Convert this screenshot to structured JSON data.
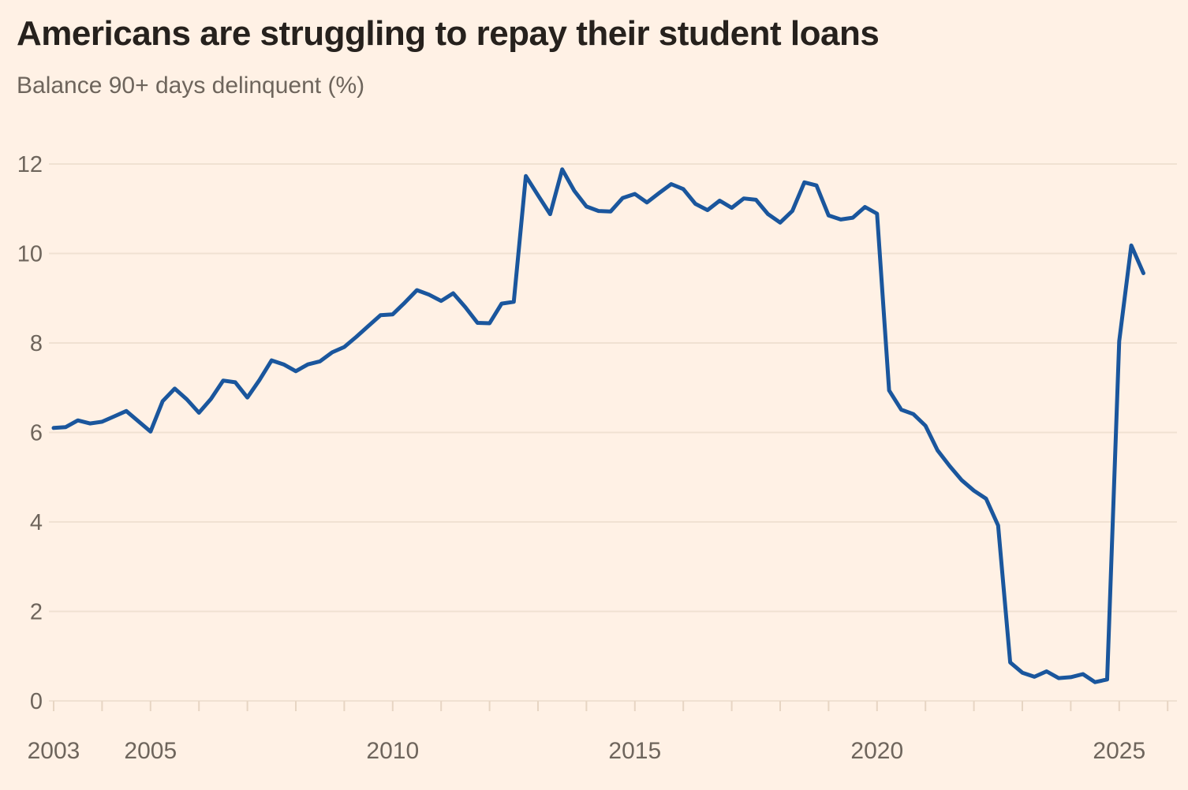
{
  "title": "Americans are struggling to repay their student loans",
  "subtitle": "Balance 90+ days delinquent (%)",
  "chart_data": {
    "type": "line",
    "title": "Americans are struggling to repay their student loans",
    "subtitle": "Balance 90+ days delinquent (%)",
    "ylabel": "Balance 90+ days delinquent (%)",
    "xlabel": "",
    "legend_position": "none",
    "grid": "horizontal",
    "ylim": [
      0,
      12.6
    ],
    "xlim": [
      2003,
      2026
    ],
    "y_ticks": [
      0,
      2,
      4,
      6,
      8,
      10,
      12
    ],
    "x_minor_tick_every_years": 1,
    "x_tick_labels": [
      {
        "year": 2003,
        "label": "2003"
      },
      {
        "year": 2005,
        "label": "2005"
      },
      {
        "year": 2010,
        "label": "2010"
      },
      {
        "year": 2015,
        "label": "2015"
      },
      {
        "year": 2020,
        "label": "2020"
      },
      {
        "year": 2025,
        "label": "2025"
      }
    ],
    "series": [
      {
        "name": "Balance 90+ days delinquent (%)",
        "start_year": 2003.0,
        "interval_years": 0.25,
        "values": [
          6.1,
          6.12,
          6.27,
          6.2,
          6.24,
          6.36,
          6.48,
          6.25,
          6.02,
          6.7,
          6.98,
          6.74,
          6.44,
          6.75,
          7.16,
          7.12,
          6.78,
          7.17,
          7.61,
          7.52,
          7.37,
          7.52,
          7.59,
          7.79,
          7.91,
          8.14,
          8.38,
          8.62,
          8.64,
          8.9,
          9.18,
          9.08,
          8.94,
          9.11,
          8.8,
          8.45,
          8.44,
          8.88,
          8.92,
          11.73,
          11.3,
          10.88,
          11.88,
          11.4,
          11.05,
          10.95,
          10.94,
          11.24,
          11.33,
          11.14,
          11.35,
          11.55,
          11.44,
          11.11,
          10.97,
          11.18,
          11.02,
          11.23,
          11.2,
          10.88,
          10.69,
          10.95,
          11.59,
          11.52,
          10.85,
          10.76,
          10.8,
          11.04,
          10.89,
          6.94,
          6.51,
          6.41,
          6.15,
          5.6,
          5.25,
          4.93,
          4.7,
          4.52,
          3.92,
          0.86,
          0.63,
          0.54,
          0.66,
          0.51,
          0.53,
          0.6,
          0.42,
          0.48,
          8.04,
          10.18,
          9.56
        ]
      }
    ],
    "colors": {
      "line": "#1a569d",
      "background": "#fff1e5",
      "gridline": "#f0e1d2",
      "axis_tick": "#e7d5c3",
      "axis_text": "#6e655c",
      "title_text": "#26211d"
    }
  }
}
